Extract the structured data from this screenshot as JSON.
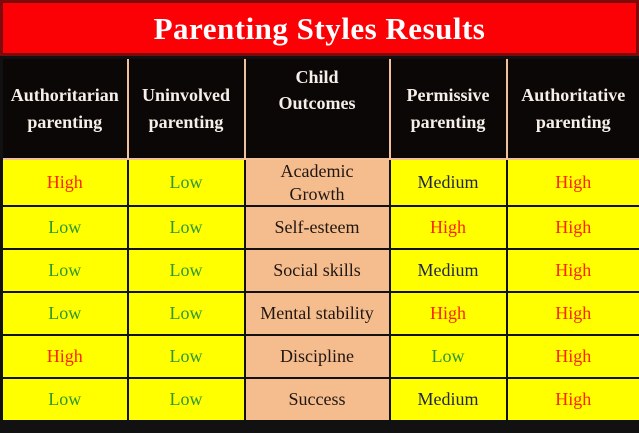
{
  "title": "Parenting Styles Results",
  "columns": [
    {
      "id": "authoritarian-parenting",
      "label": "Authoritarian\nparenting"
    },
    {
      "id": "uninvolved-parenting",
      "label": "Uninvolved\nparenting"
    },
    {
      "id": "child-outcomes",
      "label": "Child\nOutcomes"
    },
    {
      "id": "permissive-parenting",
      "label": "Permissive\nparenting"
    },
    {
      "id": "authoritative-parenting",
      "label": "Authoritative\nparenting"
    }
  ],
  "rows": [
    {
      "values": [
        "High",
        "Low",
        "Academic\nGrowth",
        "Medium",
        "High"
      ]
    },
    {
      "values": [
        "Low",
        "Low",
        "Self-esteem",
        "High",
        "High"
      ]
    },
    {
      "values": [
        "Low",
        "Low",
        "Social skills",
        "Medium",
        "High"
      ]
    },
    {
      "values": [
        "Low",
        "Low",
        "Mental stability",
        "High",
        "High"
      ]
    },
    {
      "values": [
        "High",
        "Low",
        "Discipline",
        "Low",
        "High"
      ]
    },
    {
      "values": [
        "Low",
        "Low",
        "Success",
        "Medium",
        "High"
      ]
    }
  ],
  "colors": {
    "banner_bg": "#fb0105",
    "banner_border": "#7d0b0b",
    "banner_text": "#ffffff",
    "header_bg": "#0c0707",
    "header_text": "#f6efe9",
    "header_border": "#f3c09c",
    "cell_yellow": "#ffff00",
    "cell_salmon": "#f5bd8d",
    "grid_black": "#111111",
    "high_red": "#fb2500",
    "low_green": "#2f9730",
    "medium_navy": "#1f2747",
    "outcome_text": "#201612"
  },
  "chart_data": {
    "type": "table",
    "title": "Parenting Styles Results",
    "categories": [
      "Academic Growth",
      "Self-esteem",
      "Social skills",
      "Mental stability",
      "Discipline",
      "Success"
    ],
    "series": [
      {
        "name": "Authoritarian parenting",
        "values": [
          "High",
          "Low",
          "Low",
          "Low",
          "High",
          "Low"
        ]
      },
      {
        "name": "Uninvolved parenting",
        "values": [
          "Low",
          "Low",
          "Low",
          "Low",
          "Low",
          "Low"
        ]
      },
      {
        "name": "Permissive parenting",
        "values": [
          "Medium",
          "High",
          "Medium",
          "High",
          "Low",
          "Medium"
        ]
      },
      {
        "name": "Authoritative parenting",
        "values": [
          "High",
          "High",
          "High",
          "High",
          "High",
          "High"
        ]
      }
    ]
  }
}
